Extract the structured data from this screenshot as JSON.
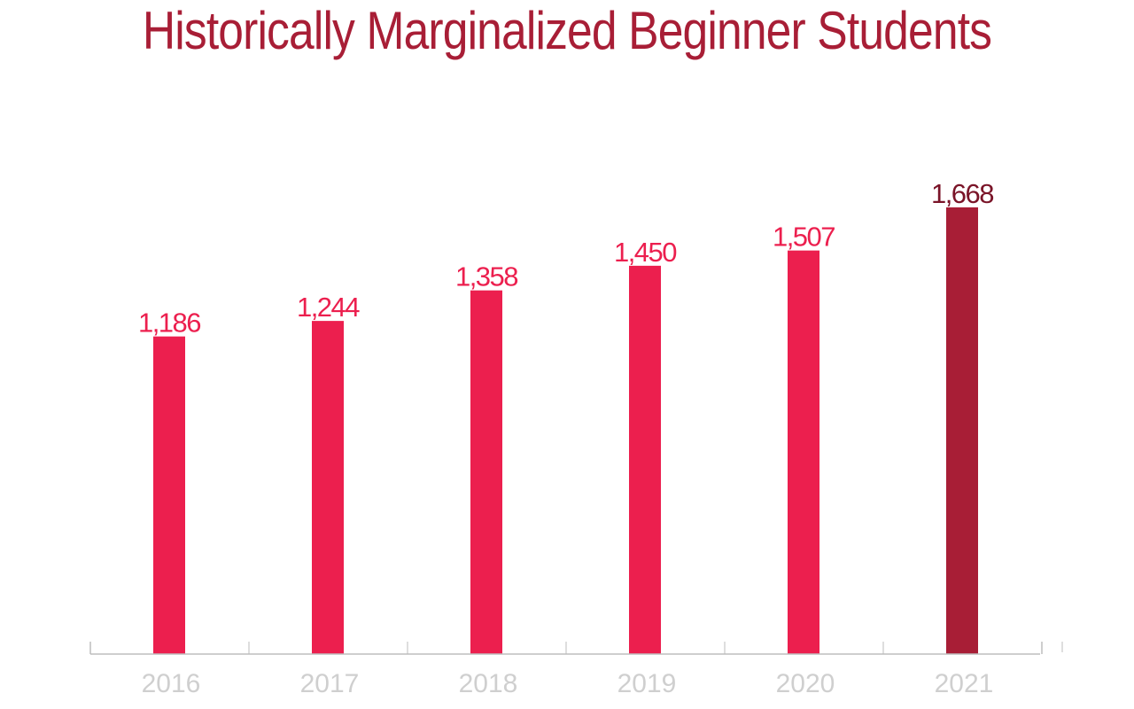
{
  "colors": {
    "title": "#a81e36",
    "bar": "#ec1f4e",
    "bar_highlight": "#a81e36",
    "value_label": "#ec1f4e",
    "value_label_highlight": "#7a1428",
    "axis": "#bdbdbd",
    "tick_label": "#cfcfcf"
  },
  "chart_data": {
    "type": "bar",
    "title": "Historically Marginalized Beginner Students",
    "xlabel": "",
    "ylabel": "",
    "categories": [
      "2016",
      "2017",
      "2018",
      "2019",
      "2020",
      "2021"
    ],
    "values": [
      1186,
      1244,
      1358,
      1450,
      1507,
      1668
    ],
    "value_labels": [
      "1,186",
      "1,244",
      "1,358",
      "1,450",
      "1,507",
      "1,668"
    ],
    "highlight_category": "2021",
    "ylim": [
      0,
      1668
    ],
    "grid": false,
    "legend": "none"
  }
}
